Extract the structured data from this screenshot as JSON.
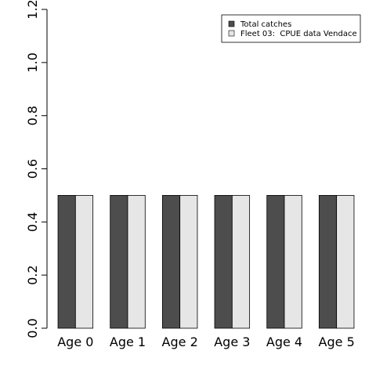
{
  "chart_data": {
    "type": "bar",
    "categories": [
      "Age 0",
      "Age 1",
      "Age 2",
      "Age 3",
      "Age 4",
      "Age 5"
    ],
    "series": [
      {
        "name": "Total catches",
        "values": [
          0.5,
          0.5,
          0.5,
          0.5,
          0.5,
          0.5
        ],
        "color": "#4d4d4d"
      },
      {
        "name": "Fleet 03:  CPUE data Vendace",
        "values": [
          0.5,
          0.5,
          0.5,
          0.5,
          0.5,
          0.5
        ],
        "color": "#e6e6e6"
      }
    ],
    "ylim": [
      0,
      1.2
    ],
    "yticks": [
      "0.0",
      "0.2",
      "0.4",
      "0.6",
      "0.8",
      "1.0",
      "1.2"
    ],
    "title": "",
    "xlabel": "",
    "ylabel": "",
    "grid": false,
    "legend_position": "top-right"
  }
}
